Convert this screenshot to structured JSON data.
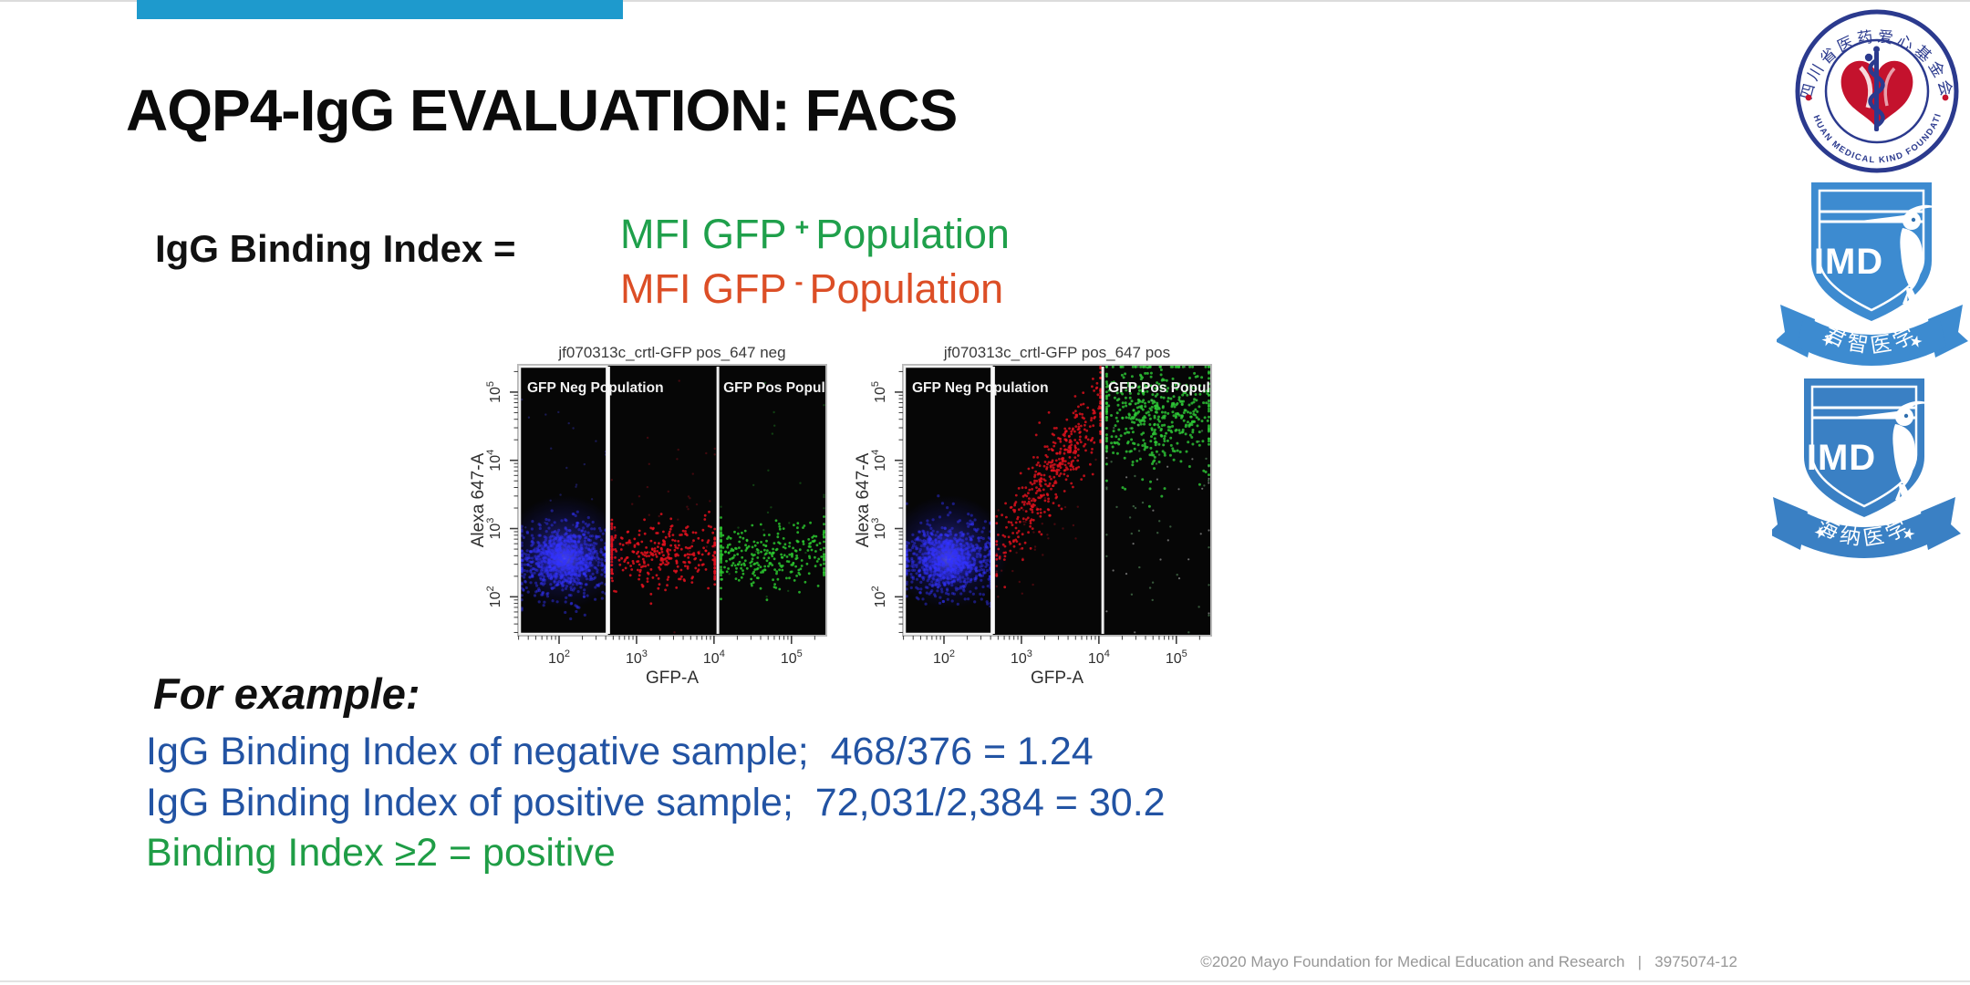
{
  "slide": {
    "top_bar_color": "#1E9ACD",
    "title": "AQP4-IgG EVALUATION: FACS",
    "formula": {
      "lhs": "IgG Binding Index =",
      "numerator": {
        "prefix": "MFI GFP",
        "sup": "+",
        "suffix": "Population",
        "color": "#1FA04B"
      },
      "denominator": {
        "prefix": "MFI GFP",
        "sup": "-",
        "suffix": "Population",
        "color": "#DC4E26"
      }
    },
    "example_heading": "For example:",
    "example_lines": [
      {
        "text": "IgG Binding Index of negative sample;  468/376 = 1.24",
        "color": "#2253A3"
      },
      {
        "text": "IgG Binding Index of positive sample;  72,031/2,384 = 30.2",
        "color": "#2253A3"
      },
      {
        "text": "Binding Index ≥2 = positive",
        "color": "#1F9D46"
      }
    ],
    "footer": "©2020 Mayo Foundation for Medical Education and Research   |   3975074-12"
  },
  "chart_data": [
    {
      "type": "scatter",
      "title": "jf070313c_crtl-GFP pos_647 neg",
      "xlabel": "GFP-A",
      "ylabel": "Alexa 647-A",
      "x_scale": "log10",
      "y_scale": "log10",
      "x_tick_exponents": [
        2,
        3,
        4,
        5
      ],
      "y_tick_exponents": [
        2,
        3,
        4,
        5
      ],
      "x_range_decades": [
        1.47,
        5.45
      ],
      "y_range_decades": [
        1.43,
        5.4
      ],
      "gates_x_decades": [
        2.64,
        4.05
      ],
      "gate_labels": [
        "GFP Neg Population",
        "GFP Pos Population"
      ],
      "clusters": [
        {
          "name": "gfp-neg-unstained-cells",
          "color": "#3434ff",
          "n": 900,
          "cx": 2.07,
          "cy": 2.55,
          "sx": 0.3,
          "sy": 0.26,
          "clip_x": [
            1.52,
            2.6
          ],
          "r": 1.6,
          "alpha": 0.45,
          "glow": true
        },
        {
          "name": "mid-gate-647-events",
          "color": "#e3121e",
          "n": 340,
          "cx": 3.35,
          "cy": 2.62,
          "sx": 0.55,
          "sy": 0.24,
          "clip_x": [
            2.68,
            4.01
          ],
          "r": 1.4,
          "alpha": 0.85
        },
        {
          "name": "mid-gate-stray",
          "color": "#b01020",
          "n": 35,
          "cx": 3.35,
          "cy": 3.5,
          "sx": 0.5,
          "sy": 0.65,
          "clip_x": [
            2.68,
            4.01
          ],
          "r": 1.2,
          "alpha": 0.35
        },
        {
          "name": "gfp-pos-events",
          "color": "#2bc42f",
          "n": 310,
          "cx": 4.75,
          "cy": 2.6,
          "sx": 0.55,
          "sy": 0.24,
          "clip_x": [
            4.09,
            5.42
          ],
          "r": 1.4,
          "alpha": 0.85
        },
        {
          "name": "gfp-pos-stray",
          "color": "#2bc42f",
          "n": 28,
          "cx": 4.8,
          "cy": 3.5,
          "sx": 0.5,
          "sy": 0.7,
          "clip_x": [
            4.09,
            5.42
          ],
          "r": 1.2,
          "alpha": 0.3
        },
        {
          "name": "blue-stray",
          "color": "#4444ff",
          "n": 26,
          "cx": 2.0,
          "cy": 3.6,
          "sx": 0.4,
          "sy": 0.8,
          "clip_x": [
            1.52,
            2.6
          ],
          "r": 1.2,
          "alpha": 0.3
        }
      ]
    },
    {
      "type": "scatter",
      "title": "jf070313c_crtl-GFP pos_647 pos",
      "xlabel": "GFP-A",
      "ylabel": "Alexa 647-A",
      "x_scale": "log10",
      "y_scale": "log10",
      "x_tick_exponents": [
        2,
        3,
        4,
        5
      ],
      "y_tick_exponents": [
        2,
        3,
        4,
        5
      ],
      "x_range_decades": [
        1.47,
        5.45
      ],
      "y_range_decades": [
        1.43,
        5.4
      ],
      "gates_x_decades": [
        2.64,
        4.05
      ],
      "gate_labels": [
        "GFP Neg Population",
        "GFP Pos Population"
      ],
      "clusters": [
        {
          "name": "gfp-neg-unstained-cells",
          "color": "#3434ff",
          "n": 900,
          "cx": 2.06,
          "cy": 2.55,
          "sx": 0.3,
          "sy": 0.26,
          "clip_x": [
            1.52,
            2.6
          ],
          "r": 1.6,
          "alpha": 0.45,
          "glow": true
        },
        {
          "name": "aqp4-igg-binding-rising",
          "color": "#e3121e",
          "n": 430,
          "cx": 3.4,
          "cy": 3.83,
          "sx": 0.38,
          "sy": 0.3,
          "slope": 1.57,
          "clip_x": [
            2.68,
            4.02
          ],
          "r": 1.4,
          "alpha": 0.8
        },
        {
          "name": "mid-gate-low-stray",
          "color": "#c01020",
          "n": 40,
          "cx": 3.1,
          "cy": 2.9,
          "sx": 0.4,
          "sy": 0.5,
          "slope": 1.0,
          "clip_x": [
            2.68,
            4.02
          ],
          "r": 1.2,
          "alpha": 0.35
        },
        {
          "name": "gfp-pos-high-647",
          "color": "#2ec937",
          "n": 500,
          "cx": 4.72,
          "cy": 4.68,
          "sx": 0.4,
          "sy": 0.42,
          "clip_x": [
            4.1,
            5.42
          ],
          "clip_y": [
            1.5,
            5.37
          ],
          "r": 1.5,
          "alpha": 0.8
        },
        {
          "name": "gfp-pos-scatter-below",
          "color": "#7fd38a",
          "n": 45,
          "cx": 4.8,
          "cy": 3.3,
          "sx": 0.5,
          "sy": 0.8,
          "clip_x": [
            4.1,
            5.42
          ],
          "r": 1.2,
          "alpha": 0.4
        },
        {
          "name": "white-specks",
          "color": "#cfcfcf",
          "n": 22,
          "cx": 4.8,
          "cy": 3.2,
          "sx": 0.5,
          "sy": 0.9,
          "clip_x": [
            4.1,
            5.42
          ],
          "r": 1.1,
          "alpha": 0.5
        }
      ]
    }
  ],
  "logos": [
    {
      "id": "sichuan-medical-kind-foundation",
      "ring_top_text": "四川省医药爱心基金会",
      "ring_bottom_text": "SICHUAN MEDICAL KIND FOUNDATION",
      "navy": "#2B3A8E",
      "red": "#C4122D"
    },
    {
      "id": "imd-junzhi",
      "shield_text": "IMD",
      "banner_text": "君智医学",
      "blue": "#3D8BD0"
    },
    {
      "id": "imd-haina",
      "shield_text": "IMD",
      "banner_text": "海纳医学",
      "blue": "#3A80C4"
    }
  ]
}
